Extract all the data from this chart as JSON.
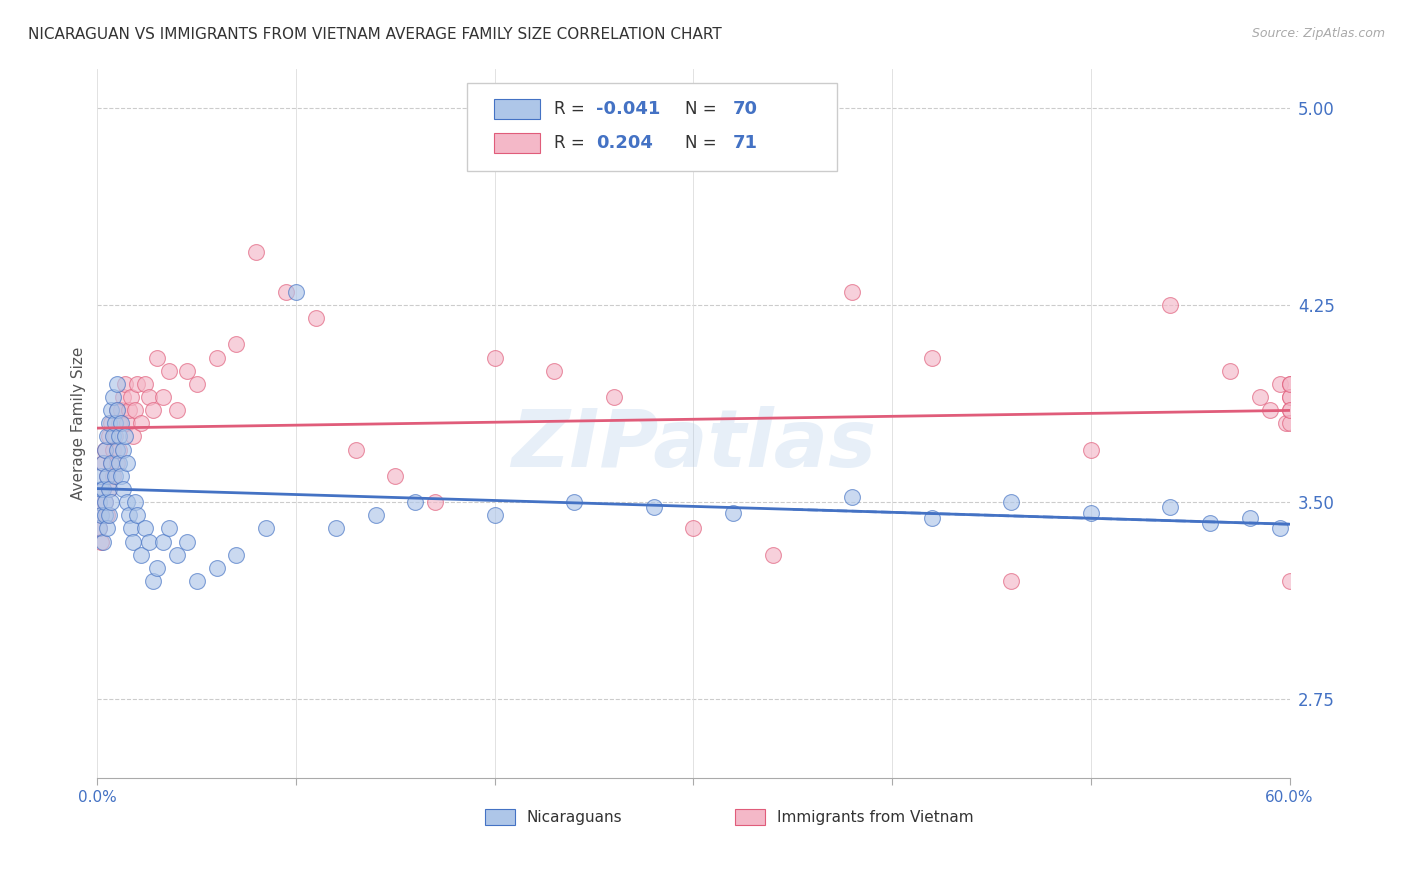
{
  "title": "NICARAGUAN VS IMMIGRANTS FROM VIETNAM AVERAGE FAMILY SIZE CORRELATION CHART",
  "source": "Source: ZipAtlas.com",
  "ylabel": "Average Family Size",
  "xmin": 0.0,
  "xmax": 0.6,
  "ymin": 2.45,
  "ymax": 5.15,
  "yticks": [
    2.75,
    3.5,
    4.25,
    5.0
  ],
  "watermark": "ZIPatlas",
  "color_blue": "#aec6e8",
  "color_pink": "#f4b8c8",
  "line_blue": "#4472c4",
  "line_pink": "#e05c7a",
  "background_color": "#ffffff",
  "blue_label": "Nicaraguans",
  "pink_label": "Immigrants from Vietnam",
  "blue_scatter_x": [
    0.001,
    0.001,
    0.002,
    0.002,
    0.002,
    0.003,
    0.003,
    0.003,
    0.004,
    0.004,
    0.004,
    0.005,
    0.005,
    0.005,
    0.006,
    0.006,
    0.006,
    0.007,
    0.007,
    0.007,
    0.008,
    0.008,
    0.009,
    0.009,
    0.01,
    0.01,
    0.01,
    0.011,
    0.011,
    0.012,
    0.012,
    0.013,
    0.013,
    0.014,
    0.015,
    0.015,
    0.016,
    0.017,
    0.018,
    0.019,
    0.02,
    0.022,
    0.024,
    0.026,
    0.028,
    0.03,
    0.033,
    0.036,
    0.04,
    0.045,
    0.05,
    0.06,
    0.07,
    0.085,
    0.1,
    0.12,
    0.14,
    0.16,
    0.2,
    0.24,
    0.28,
    0.32,
    0.38,
    0.42,
    0.46,
    0.5,
    0.54,
    0.56,
    0.58,
    0.595
  ],
  "blue_scatter_y": [
    3.5,
    3.4,
    3.55,
    3.45,
    3.6,
    3.35,
    3.55,
    3.65,
    3.45,
    3.5,
    3.7,
    3.4,
    3.6,
    3.75,
    3.45,
    3.8,
    3.55,
    3.65,
    3.85,
    3.5,
    3.75,
    3.9,
    3.6,
    3.8,
    3.7,
    3.85,
    3.95,
    3.65,
    3.75,
    3.8,
    3.6,
    3.7,
    3.55,
    3.75,
    3.65,
    3.5,
    3.45,
    3.4,
    3.35,
    3.5,
    3.45,
    3.3,
    3.4,
    3.35,
    3.2,
    3.25,
    3.35,
    3.4,
    3.3,
    3.35,
    3.2,
    3.25,
    3.3,
    3.4,
    4.3,
    3.4,
    3.45,
    3.5,
    3.45,
    3.5,
    3.48,
    3.46,
    3.52,
    3.44,
    3.5,
    3.46,
    3.48,
    3.42,
    3.44,
    3.4
  ],
  "pink_scatter_x": [
    0.001,
    0.001,
    0.002,
    0.002,
    0.003,
    0.003,
    0.004,
    0.004,
    0.005,
    0.005,
    0.006,
    0.006,
    0.007,
    0.007,
    0.008,
    0.008,
    0.009,
    0.01,
    0.01,
    0.011,
    0.011,
    0.012,
    0.013,
    0.014,
    0.015,
    0.016,
    0.017,
    0.018,
    0.019,
    0.02,
    0.022,
    0.024,
    0.026,
    0.028,
    0.03,
    0.033,
    0.036,
    0.04,
    0.045,
    0.05,
    0.06,
    0.07,
    0.08,
    0.095,
    0.11,
    0.13,
    0.15,
    0.17,
    0.2,
    0.23,
    0.26,
    0.3,
    0.34,
    0.38,
    0.42,
    0.46,
    0.5,
    0.54,
    0.57,
    0.585,
    0.59,
    0.595,
    0.598,
    0.6,
    0.6,
    0.6,
    0.6,
    0.6,
    0.6,
    0.6,
    0.6
  ],
  "pink_scatter_y": [
    3.5,
    3.4,
    3.45,
    3.35,
    3.55,
    3.65,
    3.5,
    3.7,
    3.45,
    3.6,
    3.75,
    3.55,
    3.65,
    3.8,
    3.7,
    3.6,
    3.75,
    3.85,
    3.65,
    3.7,
    3.8,
    3.85,
    3.9,
    3.95,
    3.8,
    3.85,
    3.9,
    3.75,
    3.85,
    3.95,
    3.8,
    3.95,
    3.9,
    3.85,
    4.05,
    3.9,
    4.0,
    3.85,
    4.0,
    3.95,
    4.05,
    4.1,
    4.45,
    4.3,
    4.2,
    3.7,
    3.6,
    3.5,
    4.05,
    4.0,
    3.9,
    3.4,
    3.3,
    4.3,
    4.05,
    3.2,
    3.7,
    4.25,
    4.0,
    3.9,
    3.85,
    3.95,
    3.8,
    3.9,
    3.85,
    3.95,
    3.8,
    3.9,
    3.85,
    3.95,
    3.2
  ]
}
